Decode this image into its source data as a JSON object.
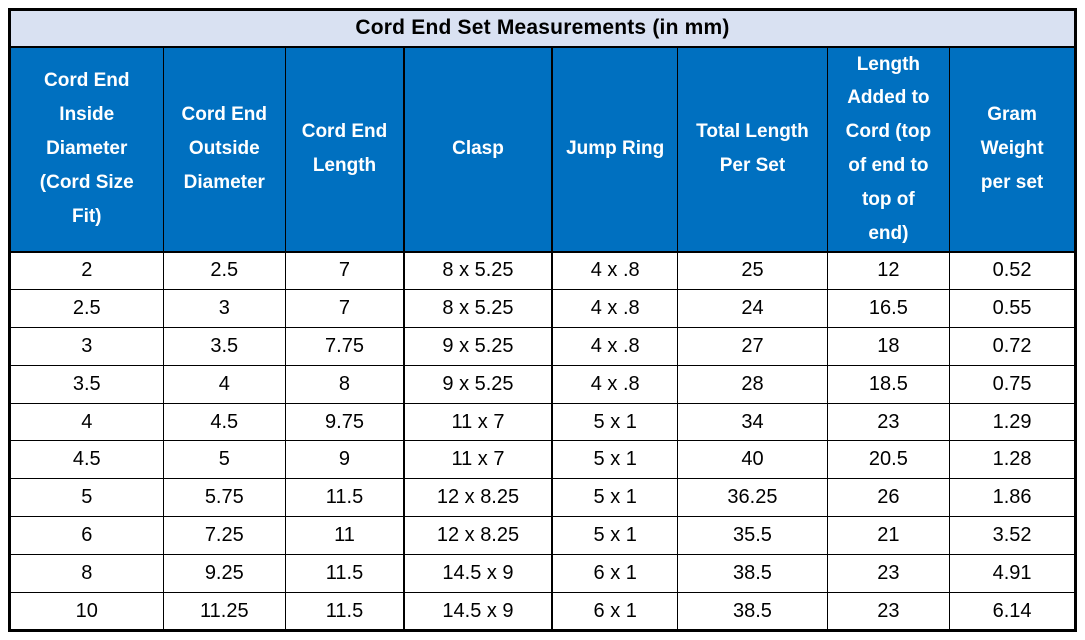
{
  "chart_data": {
    "type": "table",
    "title": "Cord End Set Measurements (in mm)",
    "columns": [
      "Cord End\nInside\nDiameter\n(Cord Size\nFit)",
      "Cord End\nOutside\nDiameter",
      "Cord End\nLength",
      "Clasp",
      "Jump Ring",
      "Total Length\nPer Set",
      "Length\nAdded to\nCord (top\nof end to\ntop of\nend)",
      "Gram\nWeight\nper set"
    ],
    "rows": [
      [
        "2",
        "2.5",
        "7",
        "8 x 5.25",
        "4 x .8",
        "25",
        "12",
        "0.52"
      ],
      [
        "2.5",
        "3",
        "7",
        "8 x 5.25",
        "4 x .8",
        "24",
        "16.5",
        "0.55"
      ],
      [
        "3",
        "3.5",
        "7.75",
        "9 x 5.25",
        "4 x .8",
        "27",
        "18",
        "0.72"
      ],
      [
        "3.5",
        "4",
        "8",
        "9 x 5.25",
        "4 x .8",
        "28",
        "18.5",
        "0.75"
      ],
      [
        "4",
        "4.5",
        "9.75",
        "11 x 7",
        "5 x 1",
        "34",
        "23",
        "1.29"
      ],
      [
        "4.5",
        "5",
        "9",
        "11 x 7",
        "5 x 1",
        "40",
        "20.5",
        "1.28"
      ],
      [
        "5",
        "5.75",
        "11.5",
        "12 x 8.25",
        "5 x 1",
        "36.25",
        "26",
        "1.86"
      ],
      [
        "6",
        "7.25",
        "11",
        "12 x 8.25",
        "5 x 1",
        "35.5",
        "21",
        "3.52"
      ],
      [
        "8",
        "9.25",
        "11.5",
        "14.5 x 9",
        "6 x 1",
        "38.5",
        "23",
        "4.91"
      ],
      [
        "10",
        "11.25",
        "11.5",
        "14.5 x 9",
        "6 x 1",
        "38.5",
        "23",
        "6.14"
      ]
    ],
    "layout": {
      "grid": true,
      "header_rows": 1,
      "title_row": true
    }
  },
  "colors": {
    "header_bg": "#0070C0",
    "header_text": "#FFFFFF",
    "title_bg": "#D9E1F2",
    "title_text": "#000000",
    "body_text": "#000000",
    "border": "#000000",
    "row_bg": "#FFFFFF"
  }
}
